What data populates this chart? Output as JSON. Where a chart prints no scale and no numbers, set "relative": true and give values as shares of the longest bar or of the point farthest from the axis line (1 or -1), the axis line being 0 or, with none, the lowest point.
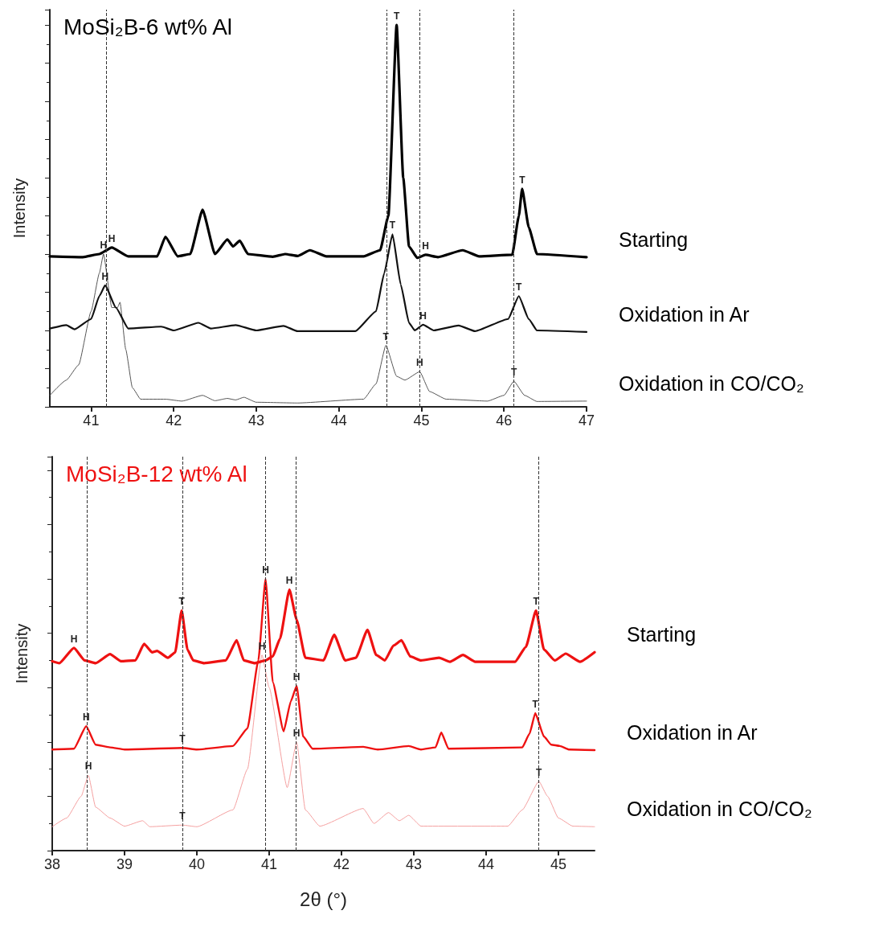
{
  "chart_data": [
    {
      "type": "line",
      "title": "MoSi₂B-6 wt% Al",
      "ylabel": "Intensity",
      "relative": true,
      "xlim": [
        40.5,
        47
      ],
      "xticks": [
        41,
        42,
        43,
        44,
        45,
        46,
        47
      ],
      "grid": false,
      "legend": false,
      "marker": "none",
      "line_style": "solid",
      "ref_lines": [
        {
          "axis": "x",
          "value": 41.18,
          "color": "#333333",
          "line_style": "dashed"
        },
        {
          "axis": "x",
          "value": 44.58,
          "color": "#333333",
          "line_style": "dashed"
        },
        {
          "axis": "x",
          "value": 44.98,
          "color": "#333333",
          "line_style": "dashed"
        },
        {
          "axis": "x",
          "value": 46.12,
          "color": "#333333",
          "line_style": "dashed"
        }
      ],
      "annotations": [
        {
          "text": "H",
          "x": 41.25,
          "y": 0.417
        },
        {
          "text": "T",
          "x": 44.7,
          "y": 1.0
        },
        {
          "text": "H",
          "x": 45.05,
          "y": 0.398
        },
        {
          "text": "T",
          "x": 46.22,
          "y": 0.571
        },
        {
          "text": "H",
          "x": 41.15,
          "y": 0.4
        },
        {
          "text": "H",
          "x": 41.17,
          "y": 0.318
        },
        {
          "text": "T",
          "x": 44.65,
          "y": 0.452
        },
        {
          "text": "H",
          "x": 45.02,
          "y": 0.215
        },
        {
          "text": "T",
          "x": 46.18,
          "y": 0.29
        },
        {
          "text": "T",
          "x": 44.57,
          "y": 0.161
        },
        {
          "text": "H",
          "x": 44.98,
          "y": 0.092
        },
        {
          "text": "T",
          "x": 46.12,
          "y": 0.067
        }
      ],
      "series": [
        {
          "name": "Starting",
          "color": "#000000",
          "x": [
            40.5,
            40.9,
            41.1,
            41.25,
            41.45,
            41.8,
            41.9,
            42.05,
            42.2,
            42.35,
            42.5,
            42.65,
            42.72,
            42.8,
            42.9,
            43.2,
            43.35,
            43.5,
            43.65,
            43.85,
            44.3,
            44.5,
            44.6,
            44.7,
            44.78,
            44.85,
            44.95,
            45.05,
            45.2,
            45.5,
            45.7,
            46.1,
            46.18,
            46.22,
            46.3,
            46.4,
            47
          ],
          "values": [
            0.394,
            0.392,
            0.4,
            0.417,
            0.394,
            0.394,
            0.445,
            0.394,
            0.4,
            0.516,
            0.4,
            0.438,
            0.42,
            0.435,
            0.4,
            0.393,
            0.4,
            0.395,
            0.41,
            0.394,
            0.394,
            0.41,
            0.5,
            1.0,
            0.6,
            0.42,
            0.39,
            0.398,
            0.392,
            0.41,
            0.394,
            0.398,
            0.5,
            0.571,
            0.47,
            0.4,
            0.392
          ]
        },
        {
          "name": "Oxidation in Ar",
          "color": "#111111",
          "x": [
            40.5,
            40.7,
            40.8,
            41.0,
            41.1,
            41.17,
            41.3,
            41.45,
            41.85,
            42.0,
            42.3,
            42.45,
            42.75,
            43.0,
            43.33,
            43.5,
            44.2,
            44.45,
            44.55,
            44.65,
            44.75,
            44.85,
            44.92,
            45.02,
            45.15,
            45.45,
            45.65,
            46.05,
            46.18,
            46.3,
            46.4,
            47
          ],
          "values": [
            0.205,
            0.214,
            0.203,
            0.23,
            0.29,
            0.318,
            0.26,
            0.205,
            0.21,
            0.2,
            0.22,
            0.205,
            0.214,
            0.2,
            0.212,
            0.198,
            0.198,
            0.25,
            0.35,
            0.452,
            0.32,
            0.22,
            0.2,
            0.215,
            0.2,
            0.213,
            0.198,
            0.23,
            0.29,
            0.23,
            0.2,
            0.196
          ]
        },
        {
          "name": "Oxidation in CO/CO₂",
          "color": "#555555",
          "x": [
            40.5,
            40.7,
            40.85,
            41.0,
            41.1,
            41.15,
            41.25,
            41.32,
            41.35,
            41.42,
            41.5,
            41.6,
            41.9,
            42.1,
            42.35,
            42.5,
            42.65,
            42.75,
            42.85,
            43.0,
            43.5,
            44.3,
            44.45,
            44.57,
            44.7,
            44.8,
            44.98,
            45.1,
            45.3,
            45.8,
            46.0,
            46.12,
            46.25,
            46.4,
            47
          ],
          "values": [
            0.03,
            0.07,
            0.11,
            0.25,
            0.35,
            0.4,
            0.26,
            0.26,
            0.274,
            0.15,
            0.05,
            0.02,
            0.02,
            0.015,
            0.03,
            0.016,
            0.022,
            0.018,
            0.025,
            0.012,
            0.01,
            0.02,
            0.06,
            0.161,
            0.08,
            0.07,
            0.092,
            0.04,
            0.02,
            0.015,
            0.03,
            0.067,
            0.03,
            0.014,
            0.015
          ]
        }
      ]
    },
    {
      "type": "line",
      "title": "MoSi₂B-12 wt% Al",
      "xlabel": "2θ (°)",
      "ylabel": "Intensity",
      "relative": true,
      "xlim": [
        38,
        45.5
      ],
      "xticks": [
        38,
        39,
        40,
        41,
        42,
        43,
        44,
        45
      ],
      "grid": false,
      "legend": false,
      "marker": "none",
      "line_style": "solid",
      "ref_lines": [
        {
          "axis": "x",
          "value": 38.48,
          "color": "#333333",
          "line_style": "dashed"
        },
        {
          "axis": "x",
          "value": 39.8,
          "color": "#333333",
          "line_style": "dashed"
        },
        {
          "axis": "x",
          "value": 40.95,
          "color": "#333333",
          "line_style": "dashed"
        },
        {
          "axis": "x",
          "value": 41.37,
          "color": "#333333",
          "line_style": "dashed"
        },
        {
          "axis": "x",
          "value": 44.73,
          "color": "#333333",
          "line_style": "dashed"
        }
      ],
      "annotations": [
        {
          "text": "H",
          "x": 38.3,
          "y": 0.746
        },
        {
          "text": "T",
          "x": 39.79,
          "y": 0.884
        },
        {
          "text": "H",
          "x": 40.95,
          "y": 1.0
        },
        {
          "text": "H",
          "x": 41.28,
          "y": 0.961
        },
        {
          "text": "T",
          "x": 44.69,
          "y": 0.884
        },
        {
          "text": "H",
          "x": 38.47,
          "y": 0.458
        },
        {
          "text": "T",
          "x": 39.8,
          "y": 0.378
        },
        {
          "text": "H",
          "x": 41.38,
          "y": 0.606
        },
        {
          "text": "T",
          "x": 44.68,
          "y": 0.506
        },
        {
          "text": "H",
          "x": 38.5,
          "y": 0.277
        },
        {
          "text": "T",
          "x": 39.8,
          "y": 0.094
        },
        {
          "text": "H",
          "x": 40.9,
          "y": 0.72
        },
        {
          "text": "H",
          "x": 41.38,
          "y": 0.4
        },
        {
          "text": "T",
          "x": 44.73,
          "y": 0.255
        }
      ],
      "series": [
        {
          "name": "Starting",
          "color": "#ee1111",
          "x": [
            38.0,
            38.1,
            38.3,
            38.45,
            38.6,
            38.8,
            38.95,
            39.15,
            39.27,
            39.38,
            39.45,
            39.6,
            39.7,
            39.79,
            39.87,
            39.95,
            40.1,
            40.4,
            40.55,
            40.65,
            40.8,
            40.95,
            41.05,
            41.15,
            41.28,
            41.38,
            41.5,
            41.75,
            41.9,
            42.05,
            42.2,
            42.36,
            42.48,
            42.6,
            42.72,
            42.83,
            42.95,
            43.1,
            43.35,
            43.5,
            43.68,
            43.85,
            44.4,
            44.55,
            44.69,
            44.8,
            44.95,
            45.1,
            45.3,
            45.5
          ],
          "values": [
            0.697,
            0.69,
            0.746,
            0.7,
            0.69,
            0.723,
            0.697,
            0.7,
            0.761,
            0.73,
            0.735,
            0.71,
            0.73,
            0.884,
            0.74,
            0.7,
            0.69,
            0.7,
            0.774,
            0.7,
            0.69,
            0.7,
            0.715,
            0.78,
            0.961,
            0.85,
            0.71,
            0.7,
            0.794,
            0.7,
            0.71,
            0.813,
            0.72,
            0.7,
            0.755,
            0.774,
            0.715,
            0.7,
            0.71,
            0.695,
            0.72,
            0.695,
            0.695,
            0.75,
            0.884,
            0.74,
            0.7,
            0.725,
            0.695,
            0.73
          ]
        },
        {
          "name": "Oxidation in Ar",
          "color": "#ee1111",
          "x": [
            38.0,
            38.3,
            38.47,
            38.6,
            38.8,
            39.0,
            39.8,
            40.0,
            40.5,
            40.7,
            40.85,
            40.95,
            41.05,
            41.2,
            41.3,
            41.38,
            41.47,
            41.6,
            42.3,
            42.5,
            42.93,
            43.1,
            43.3,
            43.38,
            43.48,
            44.5,
            44.6,
            44.68,
            44.8,
            44.9,
            45.02,
            45.15,
            45.5
          ],
          "values": [
            0.372,
            0.375,
            0.458,
            0.39,
            0.38,
            0.372,
            0.378,
            0.372,
            0.385,
            0.45,
            0.7,
            1.0,
            0.62,
            0.439,
            0.55,
            0.606,
            0.42,
            0.375,
            0.382,
            0.372,
            0.385,
            0.372,
            0.38,
            0.435,
            0.375,
            0.38,
            0.43,
            0.506,
            0.42,
            0.39,
            0.385,
            0.372,
            0.37
          ]
        },
        {
          "name": "Oxidation in CO/CO₂",
          "color": "#f5a0a0",
          "x": [
            38.0,
            38.2,
            38.4,
            38.5,
            38.6,
            38.8,
            39.0,
            39.25,
            39.35,
            39.8,
            40.0,
            40.5,
            40.7,
            40.9,
            41.0,
            41.25,
            41.38,
            41.5,
            41.7,
            42.3,
            42.45,
            42.65,
            42.8,
            42.93,
            43.1,
            44.3,
            44.5,
            44.73,
            44.85,
            45.0,
            45.2,
            45.5
          ],
          "values": [
            0.088,
            0.12,
            0.2,
            0.277,
            0.16,
            0.12,
            0.09,
            0.11,
            0.088,
            0.094,
            0.088,
            0.15,
            0.3,
            0.72,
            0.6,
            0.232,
            0.4,
            0.15,
            0.09,
            0.155,
            0.1,
            0.14,
            0.11,
            0.13,
            0.09,
            0.09,
            0.15,
            0.255,
            0.2,
            0.12,
            0.09,
            0.088
          ]
        }
      ]
    }
  ]
}
